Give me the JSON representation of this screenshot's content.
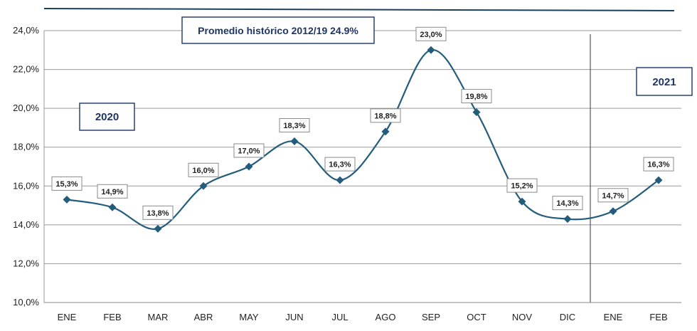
{
  "chart_data": {
    "type": "line",
    "categories": [
      "ENE",
      "FEB",
      "MAR",
      "ABR",
      "MAY",
      "JUN",
      "JUL",
      "AGO",
      "SEP",
      "OCT",
      "NOV",
      "DIC",
      "ENE",
      "FEB"
    ],
    "values": [
      15.3,
      14.9,
      13.8,
      16.0,
      17.0,
      18.3,
      16.3,
      18.8,
      23.0,
      19.8,
      15.2,
      14.3,
      14.7,
      16.3
    ],
    "data_labels": [
      "15,3%",
      "14,9%",
      "13,8%",
      "16,0%",
      "17,0%",
      "18,3%",
      "16,3%",
      "18,8%",
      "23,0%",
      "19,8%",
      "15,2%",
      "14,3%",
      "14,7%",
      "16,3%"
    ],
    "ylim": [
      10,
      24
    ],
    "y_ticks": [
      {
        "value": 10,
        "label": "10,0%"
      },
      {
        "value": 12,
        "label": "12,0%"
      },
      {
        "value": 14,
        "label": "14,0%"
      },
      {
        "value": 16,
        "label": "16,0%"
      },
      {
        "value": 18,
        "label": "18,0%"
      },
      {
        "value": 20,
        "label": "20,0%"
      },
      {
        "value": 22,
        "label": "22,0%"
      },
      {
        "value": 24,
        "label": "24,0%"
      }
    ],
    "grid": true,
    "line_color": "#245c7c",
    "marker": "diamond",
    "smooth": true,
    "annotations": {
      "average": "Promedio histórico 2012/19 24.9%",
      "year_2020": "2020",
      "year_2021": "2021"
    },
    "year_divider_after_index": 11
  }
}
